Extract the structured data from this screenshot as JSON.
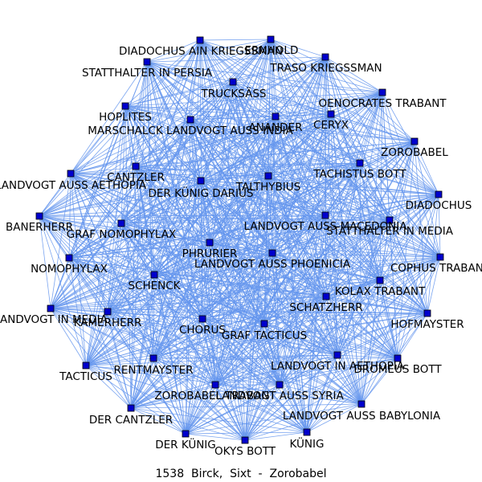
{
  "caption": "1538  Birck,  Sixt  -  Zorobabel",
  "colors": {
    "edge": "#6495ED",
    "node_fill": "#0000CD",
    "node_stroke": "#000000",
    "label": "#000000"
  },
  "graph": {
    "layout": "circular-dense",
    "nodes": [
      {
        "id": "erhold",
        "label": "ERNHOLD"
      },
      {
        "id": "trasokr",
        "label": "TRASO KRIEGSSMAN"
      },
      {
        "id": "diadochusain",
        "label": "DIADOCHUS AIN KRIEGSSMAN"
      },
      {
        "id": "stattpersia",
        "label": "STATTHALTER IN PERSIA"
      },
      {
        "id": "trucksass",
        "label": "TRUCKSÄSS"
      },
      {
        "id": "oenocrates",
        "label": "OENOCRATES TRABANT"
      },
      {
        "id": "hoplites",
        "label": "HOPLITES"
      },
      {
        "id": "marschalck",
        "label": "MARSCHALCK LANDVOGT AUSS INDIA"
      },
      {
        "id": "anander",
        "label": "ANANDER"
      },
      {
        "id": "ceryx",
        "label": "CERYX"
      },
      {
        "id": "zorobabel",
        "label": "ZOROBABEL"
      },
      {
        "id": "tachistus",
        "label": "TACHISTUS BOTT"
      },
      {
        "id": "cantzler",
        "label": "CANTZLER"
      },
      {
        "id": "landvogtaethopia",
        "label": "LANDVOGT AUSS AETHOPIA"
      },
      {
        "id": "talthybius",
        "label": "TALTHYBIUS"
      },
      {
        "id": "kunigdarius",
        "label": "DER KÜNIG DARIUS"
      },
      {
        "id": "diadochus",
        "label": "DIADOCHUS"
      },
      {
        "id": "banerherr",
        "label": "BANERHERR"
      },
      {
        "id": "landvogtmacedonia",
        "label": "LANDVOGT AUSS MACEDONIA"
      },
      {
        "id": "stattmedia",
        "label": "STATTHALTER IN MEDIA"
      },
      {
        "id": "grafnomophylax",
        "label": "GRAF NOMOPHYLAX"
      },
      {
        "id": "phrurier",
        "label": "PHRURIER"
      },
      {
        "id": "landvogtphenicia",
        "label": "LANDVOGT AUSS PHOENICIA"
      },
      {
        "id": "cophus",
        "label": "COPHUS TRABANT"
      },
      {
        "id": "nomophylax",
        "label": "NOMOPHYLAX"
      },
      {
        "id": "schenck",
        "label": "SCHENCK"
      },
      {
        "id": "kolax",
        "label": "KOLAX TRABANT"
      },
      {
        "id": "landvogtmedia",
        "label": "LANDVOGT IN MEDIA"
      },
      {
        "id": "kamerherr",
        "label": "KAMERHERR"
      },
      {
        "id": "schatzherr",
        "label": "SCHATZHERR"
      },
      {
        "id": "hofmayster",
        "label": "HOFMAYSTER"
      },
      {
        "id": "chorus",
        "label": "CHORUS"
      },
      {
        "id": "graftacticus",
        "label": "GRAF TACTICUS"
      },
      {
        "id": "landvogtaethopia2",
        "label": "LANDVOGT IN AETHOPIA"
      },
      {
        "id": "dromeus",
        "label": "DROMEUS BOTT"
      },
      {
        "id": "tacticus",
        "label": "TACTICUS"
      },
      {
        "id": "rentmayster",
        "label": "RENTMAYSTER"
      },
      {
        "id": "zorobabeltrabant",
        "label": "ZOROBABEL TRABANT"
      },
      {
        "id": "landvogtsyria",
        "label": "LANDVOGT AUSS SYRIA"
      },
      {
        "id": "landvogtbabylonia",
        "label": "LANDVOGT AUSS BABYLONIA"
      },
      {
        "id": "dercantzler",
        "label": "DER CANTZLER"
      },
      {
        "id": "derkunig",
        "label": "DER KÜNIG"
      },
      {
        "id": "okysbott",
        "label": "OKYS BOTT"
      },
      {
        "id": "kunig",
        "label": "KÜNIG"
      }
    ]
  }
}
